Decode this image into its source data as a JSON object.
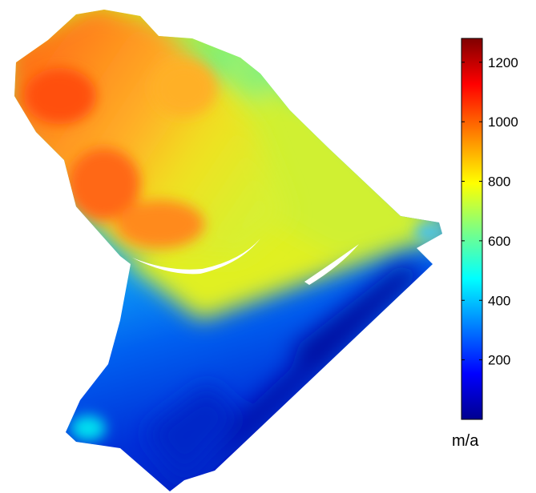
{
  "colorbar": {
    "unit": "m/a",
    "min": 0,
    "max": 1280,
    "ticks": [
      200,
      400,
      600,
      800,
      1000,
      1200
    ],
    "tick_labels": [
      "200",
      "400",
      "600",
      "800",
      "1000",
      "1200"
    ],
    "colormap": [
      "#00008f",
      "#0000ff",
      "#0080ff",
      "#00ffff",
      "#80ff80",
      "#ffff00",
      "#ff8000",
      "#ff0000",
      "#800000"
    ]
  },
  "map": {
    "colors": {
      "high": "#ff5a10",
      "upper": "#ff9820",
      "mid": "#f0f020",
      "cyan": "#00e8f0",
      "low": "#0040e0",
      "lowest": "#0010a0"
    }
  }
}
